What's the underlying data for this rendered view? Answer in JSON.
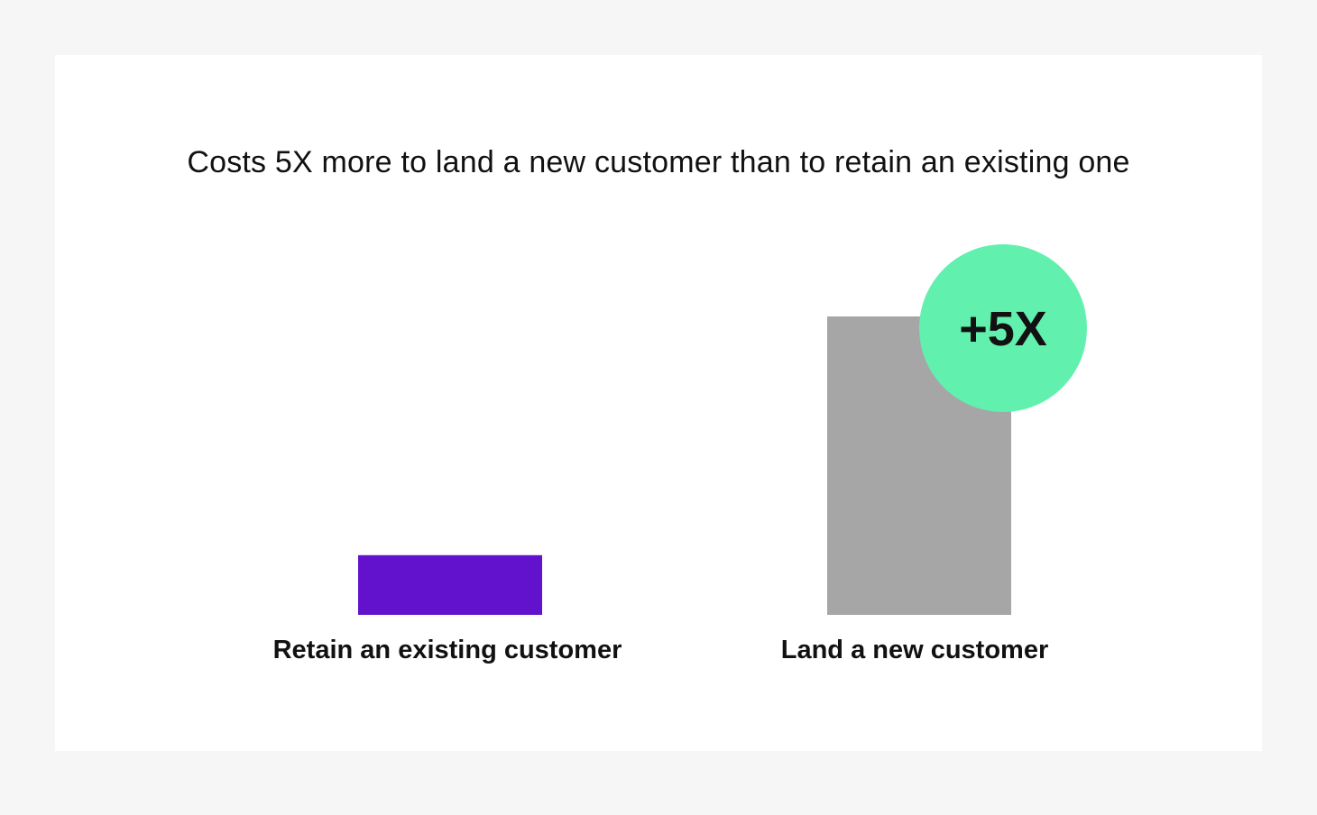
{
  "chart_data": {
    "type": "bar",
    "title": "Costs 5X more to land a new customer than to retain an existing one",
    "categories": [
      "Retain an existing customer",
      "Land a new customer"
    ],
    "values": [
      1,
      5
    ],
    "colors": [
      "#6211cc",
      "#a6a6a6"
    ],
    "ylim": [
      0,
      5
    ],
    "xlabel": "",
    "ylabel": "",
    "grid": false,
    "legend": "none",
    "annotation": {
      "text": "+5X",
      "category": "Land a new customer",
      "color": "#62f0ae"
    }
  },
  "colors": {
    "page_background": "#f6f6f6",
    "card_background": "#ffffff"
  }
}
